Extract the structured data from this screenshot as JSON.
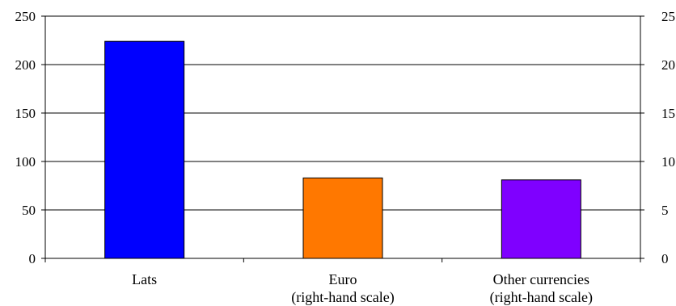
{
  "chart_data": {
    "type": "bar",
    "categories": [
      [
        "Lats"
      ],
      [
        "Euro",
        "(right-hand scale)"
      ],
      [
        "Other currencies",
        "(right-hand scale)"
      ]
    ],
    "axis": [
      "left",
      "right",
      "right"
    ],
    "values": [
      224,
      8.3,
      8.1
    ],
    "colors": [
      "#0000FF",
      "#FF7800",
      "#7F00FF"
    ],
    "left_axis": {
      "ylim": [
        0,
        250
      ],
      "ticks": [
        0,
        50,
        100,
        150,
        200,
        250
      ]
    },
    "right_axis": {
      "ylim": [
        0,
        25
      ],
      "ticks": [
        0,
        5,
        10,
        15,
        20,
        25
      ]
    },
    "grid": true,
    "legend": "none",
    "title": "",
    "xlabel": "",
    "ylabel": ""
  }
}
